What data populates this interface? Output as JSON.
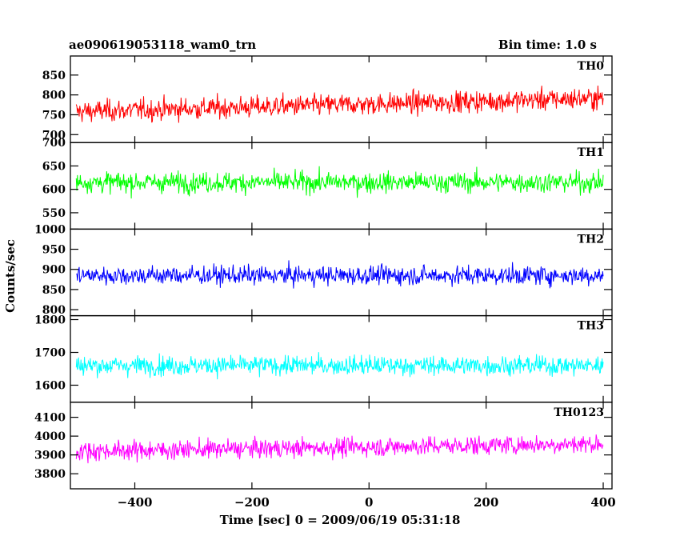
{
  "header": {
    "title": "ae090619053118_wam0_trn",
    "bin_time": "Bin time: 1.0 s"
  },
  "chart_data": {
    "type": "line",
    "xlabel": "Time [sec] 0 = 2009/06/19 05:31:18",
    "ylabel": "Counts/sec",
    "xlim": [
      -510,
      415
    ],
    "xticks": [
      -400,
      -200,
      0,
      200,
      400
    ],
    "x_start": -500,
    "x_end": 400,
    "bin": 1.0,
    "series": [
      {
        "name": "TH0",
        "color": "#ff0000",
        "ylim": [
          680,
          898
        ],
        "yticks": [
          700,
          750,
          800,
          850
        ],
        "mean_start": 758,
        "mean_end": 792,
        "spread": 35
      },
      {
        "name": "TH1",
        "color": "#00ff00",
        "ylim": [
          515,
          700
        ],
        "yticks": [
          550,
          600,
          650,
          700
        ],
        "mean_start": 615,
        "mean_end": 615,
        "spread": 28
      },
      {
        "name": "TH2",
        "color": "#0000ff",
        "ylim": [
          785,
          1000
        ],
        "yticks": [
          800,
          850,
          900,
          950,
          1000
        ],
        "mean_start": 885,
        "mean_end": 885,
        "spread": 30
      },
      {
        "name": "TH3",
        "color": "#00ffff",
        "ylim": [
          1548,
          1812
        ],
        "yticks": [
          1600,
          1700,
          1800
        ],
        "mean_start": 1660,
        "mean_end": 1660,
        "spread": 38
      },
      {
        "name": "TH0123",
        "color": "#ff00ff",
        "ylim": [
          3720,
          4180
        ],
        "yticks": [
          3800,
          3900,
          4000,
          4100
        ],
        "mean_start": 3920,
        "mean_end": 3960,
        "spread": 65
      }
    ]
  }
}
